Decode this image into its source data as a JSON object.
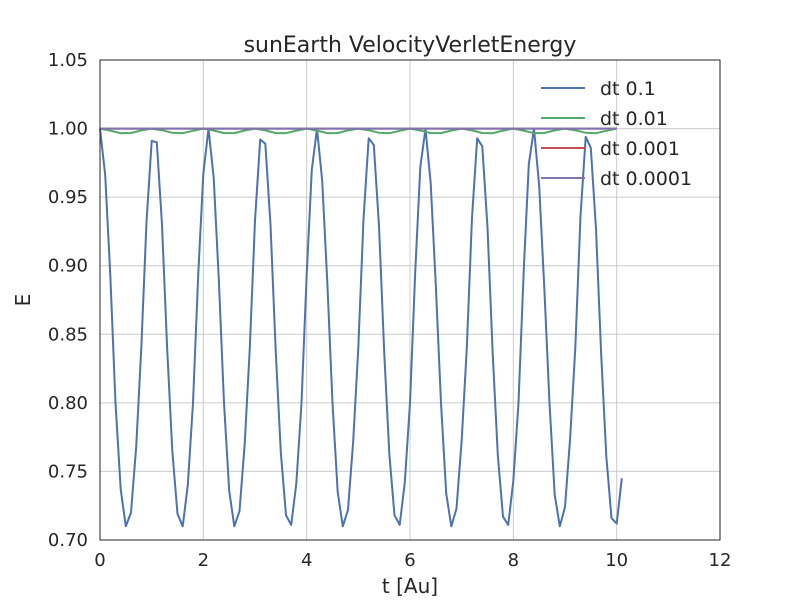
{
  "chart_data": {
    "type": "line",
    "title": "sunEarth VelocityVerletEnergy",
    "xlabel": "t [Au]",
    "ylabel": "E",
    "xlim": [
      0,
      12
    ],
    "ylim": [
      0.7,
      1.05
    ],
    "xticks": [
      "0",
      "2",
      "4",
      "6",
      "8",
      "10",
      "12"
    ],
    "yticks": [
      "0.70",
      "0.75",
      "0.80",
      "0.85",
      "0.90",
      "0.95",
      "1.00",
      "1.05"
    ],
    "grid": true,
    "legend_position": "top-right",
    "series": [
      {
        "name": "dt 0.1",
        "color": "#4c72b0",
        "x": [
          0.0,
          0.1,
          0.2,
          0.3,
          0.4,
          0.5,
          0.6,
          0.7,
          0.8,
          0.9,
          1.0,
          1.1,
          1.2,
          1.3,
          1.4,
          1.5,
          1.6,
          1.7,
          1.8,
          1.9,
          2.0,
          2.1,
          2.2,
          2.3,
          2.4,
          2.5,
          2.6,
          2.7,
          2.8,
          2.9,
          3.0,
          3.1,
          3.2,
          3.3,
          3.4,
          3.5,
          3.6,
          3.7,
          3.8,
          3.9,
          4.0,
          4.1,
          4.2,
          4.3,
          4.4,
          4.5,
          4.6,
          4.7,
          4.8,
          4.9,
          5.0,
          5.1,
          5.2,
          5.3,
          5.4,
          5.5,
          5.6,
          5.7,
          5.8,
          5.9,
          6.0,
          6.1,
          6.2,
          6.3,
          6.4,
          6.5,
          6.6,
          6.7,
          6.8,
          6.9,
          7.0,
          7.1,
          7.2,
          7.3,
          7.4,
          7.5,
          7.6,
          7.7,
          7.8,
          7.9,
          8.0,
          8.1,
          8.2,
          8.3,
          8.4,
          8.5,
          8.6,
          8.7,
          8.8,
          8.9,
          9.0,
          9.1,
          9.2,
          9.3,
          9.4,
          9.5,
          9.6,
          9.7,
          9.8,
          9.9,
          10.0,
          10.1
        ],
        "y": [
          1.0,
          0.966,
          0.893,
          0.8,
          0.737,
          0.71,
          0.72,
          0.768,
          0.84,
          0.932,
          0.991,
          0.99,
          0.93,
          0.839,
          0.765,
          0.719,
          0.71,
          0.74,
          0.8,
          0.893,
          0.967,
          1.0,
          0.964,
          0.89,
          0.8,
          0.736,
          0.71,
          0.721,
          0.77,
          0.84,
          0.933,
          0.992,
          0.989,
          0.93,
          0.838,
          0.764,
          0.718,
          0.711,
          0.741,
          0.8,
          0.894,
          0.97,
          1.0,
          0.962,
          0.888,
          0.8,
          0.735,
          0.71,
          0.722,
          0.772,
          0.84,
          0.934,
          0.993,
          0.988,
          0.929,
          0.837,
          0.763,
          0.718,
          0.711,
          0.742,
          0.8,
          0.895,
          0.972,
          1.0,
          0.96,
          0.886,
          0.8,
          0.734,
          0.71,
          0.723,
          0.773,
          0.84,
          0.935,
          0.993,
          0.987,
          0.928,
          0.836,
          0.762,
          0.717,
          0.711,
          0.743,
          0.8,
          0.896,
          0.974,
          1.0,
          0.958,
          0.884,
          0.8,
          0.733,
          0.71,
          0.724,
          0.775,
          0.84,
          0.936,
          0.994,
          0.986,
          0.927,
          0.835,
          0.761,
          0.716,
          0.712,
          0.745
        ]
      },
      {
        "name": "dt 0.01",
        "color": "#55a868",
        "x": [
          0.0,
          0.2,
          0.4,
          0.6,
          0.8,
          1.0,
          1.2,
          1.4,
          1.6,
          1.8,
          2.0,
          2.2,
          2.4,
          2.6,
          2.8,
          3.0,
          3.2,
          3.4,
          3.6,
          3.8,
          4.0,
          4.2,
          4.4,
          4.6,
          4.8,
          5.0,
          5.2,
          5.4,
          5.6,
          5.8,
          6.0,
          6.2,
          6.4,
          6.6,
          6.8,
          7.0,
          7.2,
          7.4,
          7.6,
          7.8,
          8.0,
          8.2,
          8.4,
          8.6,
          8.8,
          9.0,
          9.2,
          9.4,
          9.6,
          9.8,
          10.0
        ],
        "y": [
          1.0,
          0.9985,
          0.9966,
          0.9968,
          0.9987,
          0.9999,
          0.9988,
          0.9969,
          0.9966,
          0.9984,
          1.0,
          0.9986,
          0.9967,
          0.9967,
          0.9986,
          1.0,
          0.9987,
          0.9968,
          0.9966,
          0.9985,
          1.0,
          0.9985,
          0.9966,
          0.9968,
          0.9987,
          0.9999,
          0.9988,
          0.9969,
          0.9966,
          0.9984,
          1.0,
          0.9986,
          0.9967,
          0.9967,
          0.9986,
          1.0,
          0.9987,
          0.9968,
          0.9966,
          0.9985,
          1.0,
          0.9985,
          0.9966,
          0.9968,
          0.9987,
          0.9999,
          0.9988,
          0.9969,
          0.9966,
          0.9984,
          1.0
        ]
      },
      {
        "name": "dt 0.001",
        "color": "#c44e52",
        "x": [
          0.0,
          10.0
        ],
        "y": [
          1.0,
          1.0
        ]
      },
      {
        "name": "dt 0.0001",
        "color": "#8172b2",
        "x": [
          0.0,
          10.0
        ],
        "y": [
          1.0,
          1.0
        ]
      }
    ]
  }
}
